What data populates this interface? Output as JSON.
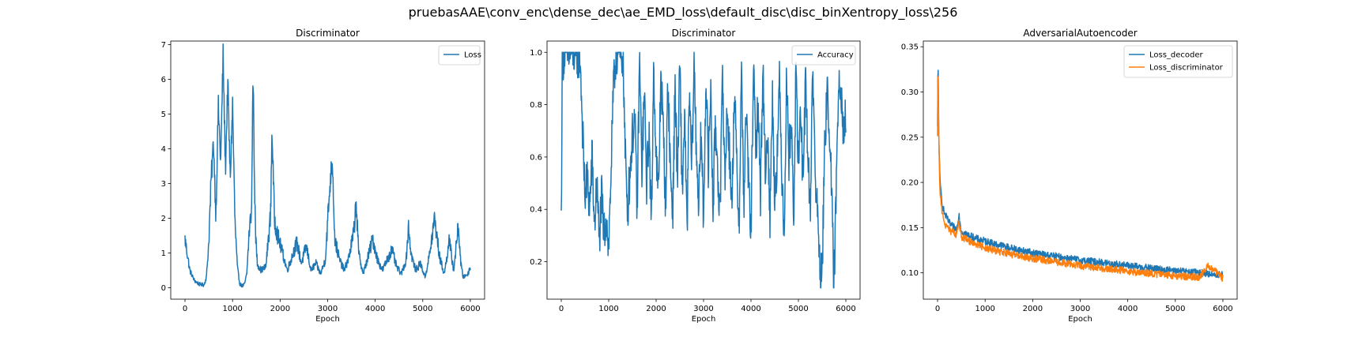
{
  "suptitle": "pruebasAAE\\conv_enc\\dense_dec\\ae_EMD_loss\\default_disc\\disc_binXentropy_loss\\256",
  "colors": {
    "blue": "#1f77b4",
    "orange": "#ff7f0e"
  },
  "chart_data": [
    {
      "type": "line",
      "title": "Discriminator",
      "xlabel": "Epoch",
      "ylabel": "",
      "xlim": [
        -300,
        6300
      ],
      "ylim": [
        -0.33,
        7.1
      ],
      "xticks": [
        0,
        1000,
        2000,
        3000,
        4000,
        5000,
        6000
      ],
      "yticks": [
        0,
        1,
        2,
        3,
        4,
        5,
        6,
        7
      ],
      "xtick_labels": [
        "0",
        "1000",
        "2000",
        "3000",
        "4000",
        "5000",
        "6000"
      ],
      "ytick_labels": [
        "0",
        "1",
        "2",
        "3",
        "4",
        "5",
        "6",
        "7"
      ],
      "legend": "upper right",
      "series": [
        {
          "name": "Loss",
          "color": "#1f77b4",
          "x": [
            0,
            100,
            200,
            300,
            400,
            450,
            500,
            550,
            600,
            650,
            700,
            750,
            800,
            850,
            900,
            950,
            1000,
            1050,
            1100,
            1150,
            1200,
            1250,
            1300,
            1350,
            1400,
            1430,
            1450,
            1480,
            1520,
            1600,
            1700,
            1800,
            1830,
            1880,
            1950,
            2050,
            2150,
            2250,
            2350,
            2450,
            2550,
            2650,
            2750,
            2850,
            2950,
            3050,
            3100,
            3150,
            3250,
            3350,
            3450,
            3550,
            3600,
            3650,
            3750,
            3850,
            3950,
            4050,
            4150,
            4250,
            4350,
            4450,
            4550,
            4650,
            4700,
            4750,
            4850,
            4950,
            5050,
            5150,
            5250,
            5350,
            5450,
            5500,
            5550,
            5650,
            5750,
            5800,
            5850,
            5950,
            6000
          ],
          "y": [
            1.4,
            0.5,
            0.2,
            0.1,
            0.08,
            0.3,
            1.3,
            3.1,
            4.2,
            2.1,
            5.2,
            3.6,
            6.7,
            3.4,
            5.9,
            3.1,
            5.3,
            1.9,
            0.6,
            0.12,
            0.05,
            0.09,
            0.4,
            1.6,
            2.3,
            6.4,
            4.1,
            1.6,
            0.7,
            0.5,
            0.6,
            2.1,
            4.6,
            2.0,
            1.5,
            1.0,
            0.5,
            0.9,
            1.3,
            0.7,
            1.2,
            0.5,
            0.7,
            0.4,
            0.8,
            3.0,
            3.7,
            1.4,
            0.8,
            0.5,
            0.9,
            1.6,
            2.5,
            1.0,
            0.4,
            0.9,
            1.4,
            0.8,
            0.5,
            0.8,
            1.1,
            0.6,
            0.4,
            0.8,
            1.8,
            1.0,
            0.5,
            0.7,
            0.3,
            1.0,
            2.0,
            0.9,
            0.4,
            0.8,
            1.4,
            0.5,
            1.8,
            0.7,
            0.3,
            0.4,
            0.6
          ]
        }
      ]
    },
    {
      "type": "line",
      "title": "Discriminator",
      "xlabel": "Epoch",
      "ylabel": "",
      "xlim": [
        -300,
        6300
      ],
      "ylim": [
        0.057,
        1.043
      ],
      "xticks": [
        0,
        1000,
        2000,
        3000,
        4000,
        5000,
        6000
      ],
      "yticks": [
        0.2,
        0.4,
        0.6,
        0.8,
        1.0
      ],
      "xtick_labels": [
        "0",
        "1000",
        "2000",
        "3000",
        "4000",
        "5000",
        "6000"
      ],
      "ytick_labels": [
        "0.2",
        "0.4",
        "0.6",
        "0.8",
        "1.0"
      ],
      "legend": "upper right",
      "series": [
        {
          "name": "Accuracy",
          "color": "#1f77b4",
          "x": [
            0,
            20,
            60,
            100,
            200,
            300,
            400,
            450,
            500,
            550,
            600,
            650,
            700,
            750,
            800,
            850,
            900,
            950,
            1000,
            1050,
            1100,
            1150,
            1200,
            1250,
            1300,
            1350,
            1400,
            1450,
            1500,
            1550,
            1600,
            1650,
            1700,
            1750,
            1800,
            1850,
            1900,
            1950,
            2000,
            2050,
            2100,
            2150,
            2200,
            2250,
            2300,
            2350,
            2400,
            2450,
            2500,
            2550,
            2600,
            2650,
            2700,
            2750,
            2800,
            2850,
            2900,
            2950,
            3000,
            3050,
            3100,
            3150,
            3200,
            3250,
            3300,
            3350,
            3400,
            3450,
            3500,
            3550,
            3600,
            3650,
            3700,
            3750,
            3800,
            3850,
            3900,
            3950,
            4000,
            4050,
            4100,
            4150,
            4200,
            4250,
            4300,
            4350,
            4400,
            4450,
            4500,
            4550,
            4600,
            4650,
            4700,
            4750,
            4800,
            4850,
            4900,
            4950,
            5000,
            5050,
            5100,
            5150,
            5200,
            5250,
            5300,
            5350,
            5400,
            5450,
            5500,
            5550,
            5600,
            5650,
            5700,
            5750,
            5800,
            5850,
            5900,
            5950,
            6000
          ],
          "y": [
            0.35,
            0.95,
            1.0,
            0.99,
            1.0,
            0.99,
            0.98,
            0.7,
            0.45,
            0.52,
            0.4,
            0.6,
            0.33,
            0.5,
            0.28,
            0.45,
            0.3,
            0.38,
            0.25,
            0.55,
            0.85,
            0.99,
            1.0,
            0.97,
            0.99,
            0.6,
            0.4,
            0.55,
            0.68,
            0.75,
            0.38,
            0.98,
            0.55,
            0.85,
            0.5,
            0.7,
            0.33,
            0.96,
            0.6,
            0.45,
            0.93,
            0.7,
            0.42,
            0.9,
            0.55,
            0.38,
            0.88,
            0.5,
            0.96,
            0.45,
            0.78,
            0.3,
            0.85,
            0.55,
            0.96,
            0.62,
            0.42,
            0.7,
            0.35,
            0.92,
            0.55,
            0.87,
            0.4,
            0.73,
            0.56,
            0.35,
            0.95,
            0.5,
            0.8,
            0.6,
            0.4,
            0.88,
            0.55,
            0.35,
            0.93,
            0.42,
            0.78,
            0.5,
            0.3,
            0.95,
            0.62,
            0.8,
            0.45,
            0.96,
            0.55,
            0.7,
            0.35,
            0.85,
            0.45,
            0.6,
            0.88,
            0.55,
            0.32,
            0.9,
            0.6,
            0.75,
            0.35,
            0.95,
            0.55,
            0.8,
            0.45,
            0.93,
            0.6,
            0.38,
            0.97,
            0.55,
            0.38,
            0.2,
            0.15,
            0.6,
            0.85,
            0.75,
            0.45,
            0.1,
            0.5,
            0.92,
            0.87,
            0.7,
            0.75
          ]
        }
      ]
    },
    {
      "type": "line",
      "title": "AdversarialAutoencoder",
      "xlabel": "Epoch",
      "ylabel": "",
      "xlim": [
        -300,
        6300
      ],
      "ylim": [
        0.0709,
        0.3563
      ],
      "xticks": [
        0,
        1000,
        2000,
        3000,
        4000,
        5000,
        6000
      ],
      "yticks": [
        0.1,
        0.15,
        0.2,
        0.25,
        0.3,
        0.35
      ],
      "xtick_labels": [
        "0",
        "1000",
        "2000",
        "3000",
        "4000",
        "5000",
        "6000"
      ],
      "ytick_labels": [
        "0.10",
        "0.15",
        "0.20",
        "0.25",
        "0.30",
        "0.35"
      ],
      "legend": "upper right",
      "series": [
        {
          "name": "Loss_decoder",
          "color": "#1f77b4",
          "x": [
            0,
            10,
            30,
            50,
            80,
            100,
            150,
            200,
            250,
            300,
            400,
            450,
            500,
            600,
            800,
            1000,
            1200,
            1500,
            2000,
            2500,
            3000,
            3500,
            4000,
            4500,
            5000,
            5500,
            5700,
            6000
          ],
          "y": [
            0.26,
            0.34,
            0.24,
            0.2,
            0.185,
            0.175,
            0.165,
            0.16,
            0.155,
            0.152,
            0.148,
            0.165,
            0.146,
            0.143,
            0.138,
            0.135,
            0.132,
            0.128,
            0.122,
            0.118,
            0.114,
            0.111,
            0.108,
            0.105,
            0.102,
            0.1,
            0.099,
            0.098
          ]
        },
        {
          "name": "Loss_discriminator",
          "color": "#ff7f0e",
          "x": [
            0,
            10,
            30,
            50,
            80,
            100,
            150,
            200,
            250,
            300,
            400,
            450,
            500,
            600,
            800,
            1000,
            1200,
            1500,
            2000,
            2500,
            3000,
            3500,
            4000,
            4500,
            5000,
            5500,
            5700,
            6000
          ],
          "y": [
            0.25,
            0.33,
            0.23,
            0.19,
            0.175,
            0.165,
            0.155,
            0.15,
            0.147,
            0.145,
            0.142,
            0.158,
            0.14,
            0.137,
            0.132,
            0.128,
            0.125,
            0.121,
            0.116,
            0.112,
            0.108,
            0.105,
            0.102,
            0.099,
            0.097,
            0.095,
            0.108,
            0.094
          ]
        }
      ]
    }
  ]
}
